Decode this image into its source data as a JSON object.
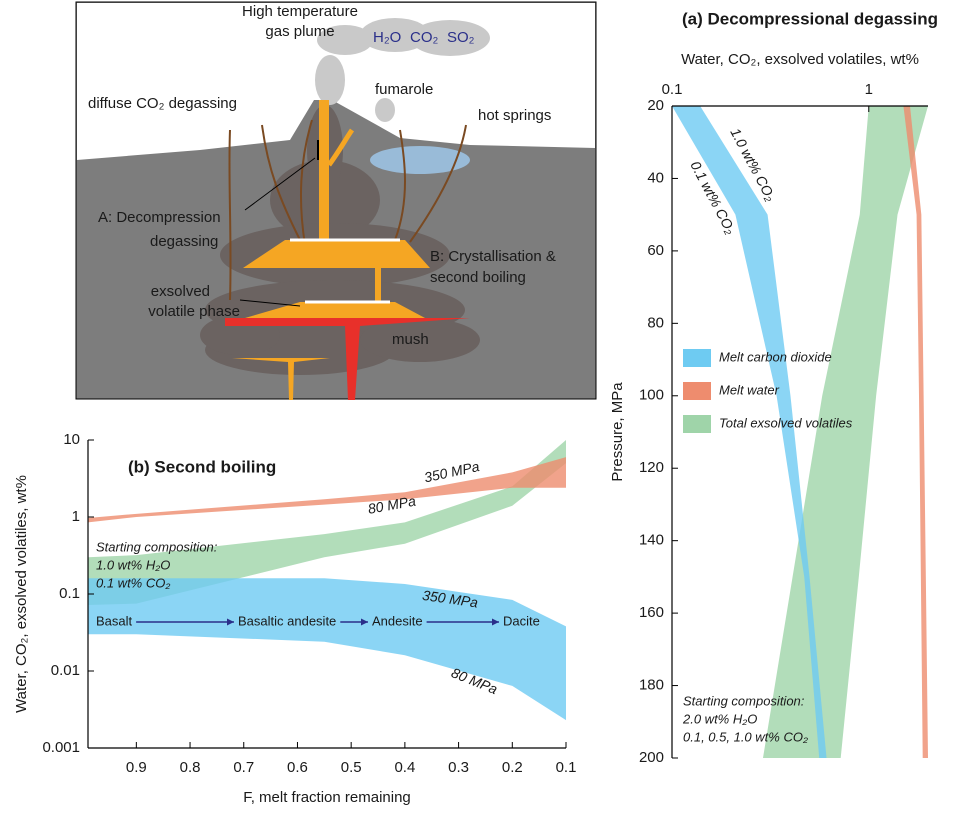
{
  "diagram": {
    "labels": [
      "High temperature",
      "gas plume",
      "H₂O",
      "CO₂",
      "SO₂",
      "diffuse CO₂ degassing",
      "fumarole",
      "hot springs",
      "A: Decompression",
      "degassing",
      "B: Crystallisation &",
      "second boiling",
      "exsolved",
      "volatile phase",
      "mush"
    ]
  },
  "chart_data": [
    {
      "type": "band",
      "title": "(a) Decompressional degassing",
      "xlabel": "Water, CO₂, exsolved volatiles, wt%",
      "ylabel": "Pressure, MPa",
      "xscale": "log",
      "xlim": [
        0.1,
        2
      ],
      "xticks": [
        0.1,
        1
      ],
      "ylim": [
        20,
        200
      ],
      "yticks": [
        20,
        40,
        60,
        80,
        100,
        120,
        140,
        160,
        180,
        200
      ],
      "y_inverted": true,
      "legend": "left",
      "y": [
        20,
        50,
        100,
        150,
        200
      ],
      "series": [
        {
          "name": "Melt carbon dioxide",
          "color": "#6ecbf2",
          "lower": [
            0.1,
            0.21,
            0.34,
            0.47,
            0.56
          ],
          "upper": [
            0.139,
            0.306,
            0.4,
            0.5,
            0.61
          ]
        },
        {
          "name": "Melt water",
          "color": "#ee8c6e",
          "lower": [
            1.5,
            1.75,
            1.8,
            1.84,
            1.88
          ],
          "upper": [
            1.62,
            1.85,
            1.9,
            1.95,
            2.0
          ]
        },
        {
          "name": "Total exsolved volatiles",
          "color": "#9fd4a9",
          "lower": [
            1.0,
            0.9,
            0.58,
            0.41,
            0.29
          ],
          "upper": [
            2.0,
            1.4,
            1.09,
            0.89,
            0.72
          ]
        }
      ],
      "annotations": [
        "1.0 wt% CO₂",
        "0.1 wt% CO₂"
      ],
      "note": [
        "Starting composition:",
        "2.0 wt% H₂O",
        "0.1, 0.5, 1.0 wt% CO₂"
      ]
    },
    {
      "type": "band",
      "title": "(b) Second boiling",
      "xlabel": "F, melt fraction remaining",
      "ylabel": "Water, CO₂, exsolved volatiles, wt%",
      "yscale": "log",
      "xlim": [
        0.99,
        0.1
      ],
      "xticks": [
        0.9,
        0.8,
        0.7,
        0.6,
        0.5,
        0.4,
        0.3,
        0.2,
        0.1
      ],
      "ylim": [
        0.001,
        10
      ],
      "yticks": [
        10,
        1,
        0.1,
        0.01,
        0.001
      ],
      "x": [
        0.99,
        0.9,
        0.55,
        0.4,
        0.2,
        0.1
      ],
      "series": [
        {
          "color": "#6ecbf2",
          "lower": [
            0.03,
            0.03,
            0.024,
            0.016,
            0.0064,
            0.0023
          ],
          "upper": [
            0.16,
            0.16,
            0.16,
            0.135,
            0.084,
            0.038
          ]
        },
        {
          "color": "#ee8c6e",
          "lower": [
            0.85,
            1.0,
            1.45,
            1.7,
            2.4,
            2.4
          ],
          "upper": [
            0.97,
            1.1,
            1.7,
            2.1,
            3.8,
            6.0
          ]
        },
        {
          "color": "#9fd4a9",
          "lower": [
            0.072,
            0.075,
            0.3,
            0.45,
            1.4,
            5.0
          ],
          "upper": [
            0.3,
            0.32,
            0.6,
            0.85,
            2.5,
            10
          ]
        }
      ],
      "annotations": [
        "350 MPa",
        "80 MPa",
        "350 MPa",
        "80 MPa"
      ],
      "note": [
        "Starting composition:",
        "1.0 wt% H₂O",
        "0.1 wt% CO₂"
      ],
      "sequence": [
        "Basalt",
        "Basaltic andesite",
        "Andesite",
        "Dacite"
      ]
    }
  ]
}
